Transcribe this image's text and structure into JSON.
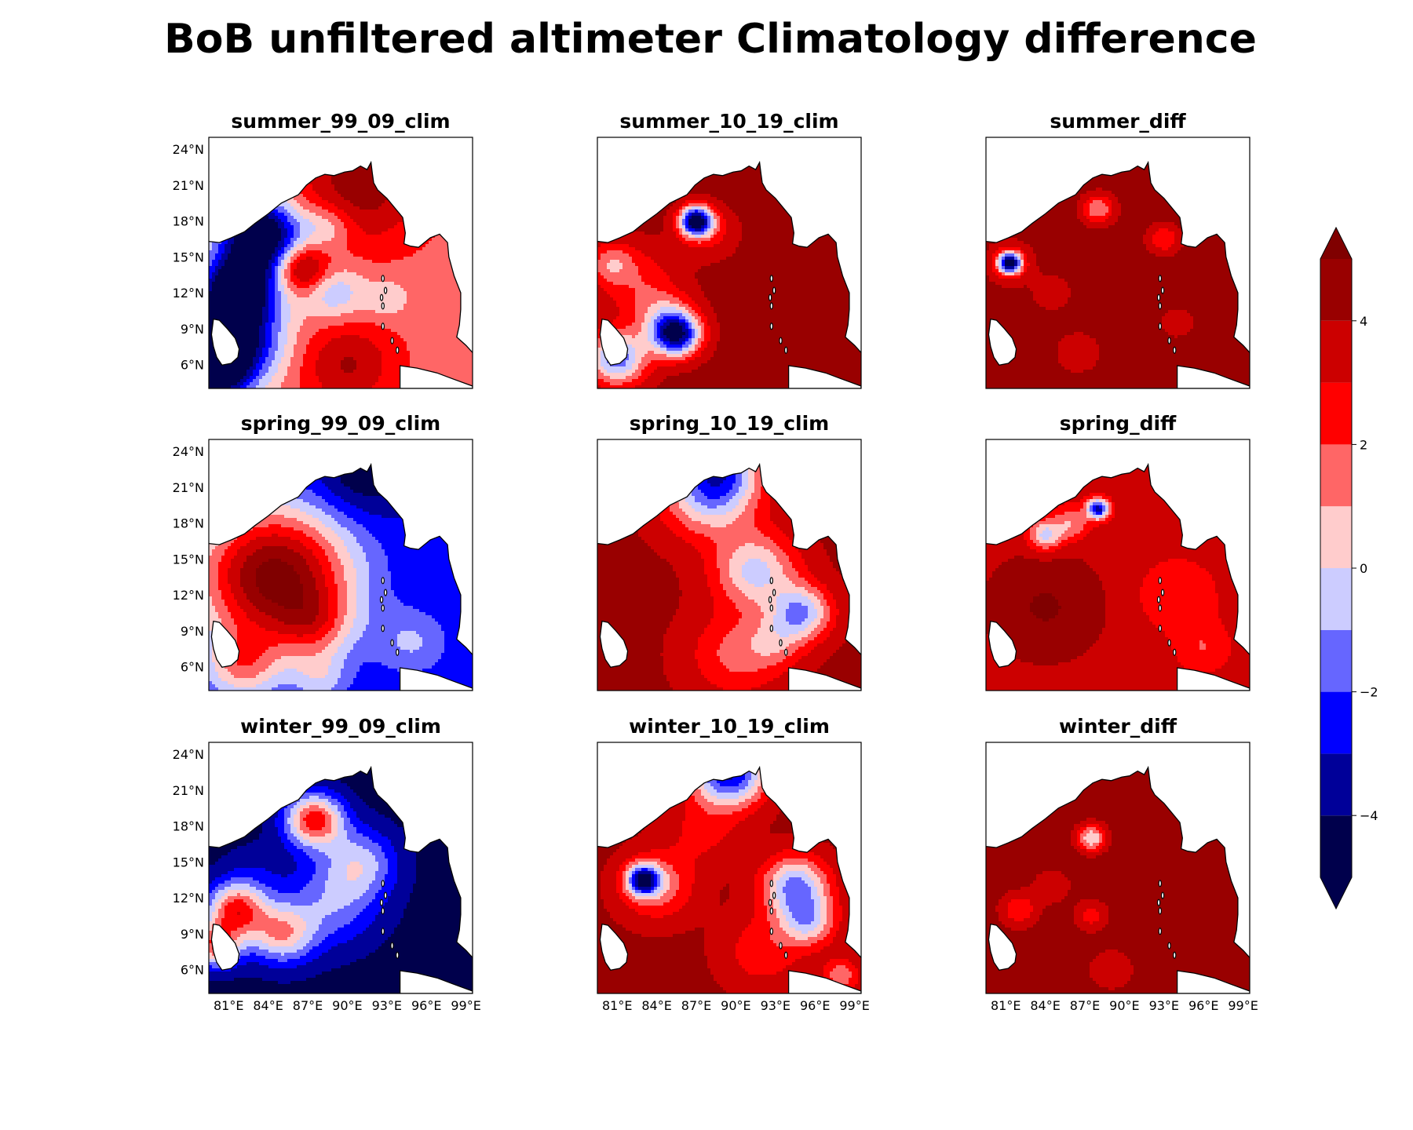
{
  "figure": {
    "title": "BoB unfiltered altimeter Climatology difference"
  },
  "palette": {
    "bwr_levels": [
      "#00004c",
      "#000099",
      "#0000ff",
      "#6666ff",
      "#ccccff",
      "#ffcccc",
      "#ff6666",
      "#ff0000",
      "#cc0000",
      "#990000",
      "#800000"
    ],
    "land": "#ffffff",
    "coast": "#000000"
  },
  "chart_data": {
    "type": "heatmap",
    "kind": "filled-contour map panels",
    "grid": "3x3",
    "axes": {
      "x_ticks": [
        "81°E",
        "84°E",
        "87°E",
        "90°E",
        "93°E",
        "96°E",
        "99°E"
      ],
      "x_values": [
        81,
        84,
        87,
        90,
        93,
        96,
        99
      ],
      "y_ticks": [
        "24°N",
        "21°N",
        "18°N",
        "15°N",
        "12°N",
        "9°N",
        "6°N"
      ],
      "y_values": [
        24,
        21,
        18,
        15,
        12,
        9,
        6
      ],
      "xlim": [
        79.5,
        99.5
      ],
      "ylim": [
        4.0,
        25.0
      ]
    },
    "colorbar": {
      "ticks": [
        "4",
        "2",
        "0",
        "−2",
        "−4"
      ],
      "tick_values": [
        4,
        2,
        0,
        -2,
        -4
      ],
      "vmin": -5,
      "vmax": 5,
      "extend": "both",
      "levels": [
        -5,
        -4,
        -3,
        -2,
        -1,
        0,
        1,
        2,
        3,
        4,
        5
      ]
    },
    "panels": [
      {
        "title": "summer_99_09_clim",
        "row": 0,
        "col": 0,
        "base": 1.6,
        "features": [
          {
            "lon": 83.5,
            "lat": 16.8,
            "r": 2.2,
            "a": -7.5
          },
          {
            "lon": 81.8,
            "lat": 12.5,
            "r": 2.0,
            "a": -6.5
          },
          {
            "lon": 81.0,
            "lat": 8.0,
            "r": 2.6,
            "a": -7.5
          },
          {
            "lon": 80.0,
            "lat": 5.3,
            "r": 1.6,
            "a": -5.5
          },
          {
            "lon": 86.5,
            "lat": 14.0,
            "r": 1.4,
            "a": 4.0
          },
          {
            "lon": 89.0,
            "lat": 12.0,
            "r": 1.6,
            "a": -2.5
          },
          {
            "lon": 88.5,
            "lat": 17.5,
            "r": 1.3,
            "a": -2.0
          },
          {
            "lon": 93.0,
            "lat": 11.5,
            "r": 1.2,
            "a": -1.5
          },
          {
            "lon": 91.0,
            "lat": 21.0,
            "r": 3.5,
            "a": 3.0
          },
          {
            "lon": 90.0,
            "lat": 6.0,
            "r": 2.5,
            "a": 2.5
          }
        ]
      },
      {
        "title": "summer_10_19_clim",
        "row": 0,
        "col": 1,
        "base": 4.4,
        "features": [
          {
            "lon": 87.0,
            "lat": 18.0,
            "r": 0.9,
            "a": -9.0
          },
          {
            "lon": 85.5,
            "lat": 8.5,
            "r": 1.3,
            "a": -8.0
          },
          {
            "lon": 81.0,
            "lat": 6.5,
            "r": 1.6,
            "a": -6.0
          },
          {
            "lon": 82.5,
            "lat": 13.0,
            "r": 2.2,
            "a": -2.0
          },
          {
            "lon": 84.5,
            "lat": 10.0,
            "r": 1.6,
            "a": -2.5
          },
          {
            "lon": 80.5,
            "lat": 14.5,
            "r": 1.2,
            "a": -2.5
          },
          {
            "lon": 88.0,
            "lat": 17.0,
            "r": 1.5,
            "a": -1.5
          }
        ]
      },
      {
        "title": "summer_diff",
        "row": 0,
        "col": 2,
        "base": 4.6,
        "features": [
          {
            "lon": 81.3,
            "lat": 14.5,
            "r": 0.6,
            "a": -8.0
          },
          {
            "lon": 81.3,
            "lat": 14.5,
            "r": 1.3,
            "a": -2.0
          },
          {
            "lon": 88.0,
            "lat": 19.0,
            "r": 0.9,
            "a": -3.5
          },
          {
            "lon": 93.0,
            "lat": 16.5,
            "r": 0.9,
            "a": -2.5
          },
          {
            "lon": 84.5,
            "lat": 12.0,
            "r": 1.0,
            "a": -1.5
          },
          {
            "lon": 86.5,
            "lat": 7.0,
            "r": 1.2,
            "a": -1.5
          },
          {
            "lon": 94.0,
            "lat": 9.5,
            "r": 1.0,
            "a": -1.2
          }
        ]
      },
      {
        "title": "spring_99_09_clim",
        "row": 1,
        "col": 0,
        "base": -3.0,
        "features": [
          {
            "lon": 84.5,
            "lat": 13.5,
            "r": 4.2,
            "a": 8.5
          },
          {
            "lon": 87.5,
            "lat": 9.5,
            "r": 2.0,
            "a": 2.5
          },
          {
            "lon": 82.0,
            "lat": 6.0,
            "r": 2.0,
            "a": 3.5
          },
          {
            "lon": 88.0,
            "lat": 5.0,
            "r": 1.5,
            "a": 2.0
          },
          {
            "lon": 95.0,
            "lat": 8.0,
            "r": 2.0,
            "a": 2.0
          },
          {
            "lon": 91.0,
            "lat": 22.0,
            "r": 2.5,
            "a": -2.0
          }
        ]
      },
      {
        "title": "spring_10_19_clim",
        "row": 1,
        "col": 1,
        "base": 4.2,
        "features": [
          {
            "lon": 91.5,
            "lat": 14.0,
            "r": 2.2,
            "a": -4.5
          },
          {
            "lon": 95.0,
            "lat": 10.5,
            "r": 1.6,
            "a": -5.0
          },
          {
            "lon": 88.0,
            "lat": 20.5,
            "r": 2.5,
            "a": -5.0
          },
          {
            "lon": 89.0,
            "lat": 23.0,
            "r": 2.0,
            "a": -4.0
          },
          {
            "lon": 90.0,
            "lat": 7.0,
            "r": 2.5,
            "a": -2.5
          },
          {
            "lon": 93.0,
            "lat": 8.0,
            "r": 1.5,
            "a": -2.0
          }
        ]
      },
      {
        "title": "spring_diff",
        "row": 1,
        "col": 2,
        "base": 3.6,
        "features": [
          {
            "lon": 88.0,
            "lat": 19.2,
            "r": 0.6,
            "a": -7.0
          },
          {
            "lon": 84.0,
            "lat": 17.0,
            "r": 0.9,
            "a": -4.0
          },
          {
            "lon": 86.0,
            "lat": 18.0,
            "r": 1.0,
            "a": -2.5
          },
          {
            "lon": 94.0,
            "lat": 12.0,
            "r": 2.2,
            "a": -1.5
          },
          {
            "lon": 96.0,
            "lat": 7.5,
            "r": 1.5,
            "a": -1.5
          },
          {
            "lon": 84.0,
            "lat": 11.0,
            "r": 3.0,
            "a": 1.5
          }
        ]
      },
      {
        "title": "winter_99_09_clim",
        "row": 2,
        "col": 0,
        "base": -4.4,
        "features": [
          {
            "lon": 87.5,
            "lat": 18.5,
            "r": 1.6,
            "a": 7.0
          },
          {
            "lon": 81.5,
            "lat": 11.0,
            "r": 1.6,
            "a": 6.5
          },
          {
            "lon": 80.0,
            "lat": 8.0,
            "r": 1.3,
            "a": 6.0
          },
          {
            "lon": 85.0,
            "lat": 9.0,
            "r": 1.8,
            "a": 5.0
          },
          {
            "lon": 89.0,
            "lat": 11.5,
            "r": 2.5,
            "a": 3.0
          },
          {
            "lon": 83.0,
            "lat": 14.0,
            "r": 1.8,
            "a": 1.0
          },
          {
            "lon": 91.0,
            "lat": 15.0,
            "r": 2.0,
            "a": 3.5
          }
        ]
      },
      {
        "title": "winter_10_19_clim",
        "row": 2,
        "col": 1,
        "base": 4.3,
        "features": [
          {
            "lon": 83.0,
            "lat": 13.5,
            "r": 0.9,
            "a": -7.0
          },
          {
            "lon": 84.0,
            "lat": 13.0,
            "r": 2.0,
            "a": -3.0
          },
          {
            "lon": 94.5,
            "lat": 13.0,
            "r": 1.8,
            "a": -5.5
          },
          {
            "lon": 95.5,
            "lat": 10.0,
            "r": 1.5,
            "a": -4.0
          },
          {
            "lon": 89.5,
            "lat": 22.5,
            "r": 2.0,
            "a": -7.5
          },
          {
            "lon": 98.0,
            "lat": 5.5,
            "r": 1.0,
            "a": -3.0
          },
          {
            "lon": 92.0,
            "lat": 7.5,
            "r": 2.2,
            "a": -2.0
          },
          {
            "lon": 87.5,
            "lat": 17.5,
            "r": 2.0,
            "a": -1.5
          }
        ]
      },
      {
        "title": "winter_diff",
        "row": 2,
        "col": 2,
        "base": 4.6,
        "features": [
          {
            "lon": 87.5,
            "lat": 17.0,
            "r": 0.8,
            "a": -4.5
          },
          {
            "lon": 82.0,
            "lat": 11.0,
            "r": 1.0,
            "a": -2.5
          },
          {
            "lon": 87.5,
            "lat": 10.5,
            "r": 0.9,
            "a": -2.0
          },
          {
            "lon": 84.5,
            "lat": 13.0,
            "r": 1.0,
            "a": -1.5
          },
          {
            "lon": 89.0,
            "lat": 6.0,
            "r": 1.2,
            "a": -1.5
          }
        ]
      }
    ]
  }
}
